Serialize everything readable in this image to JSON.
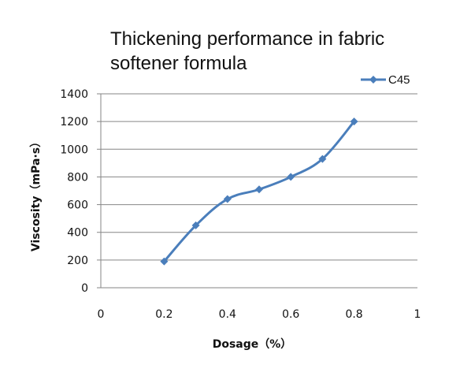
{
  "chart_data": {
    "type": "line",
    "title_lines": [
      "Thickening performance in fabric",
      "softener formula"
    ],
    "xlabel": "Dosage（%）",
    "ylabel": "Viscosity（mPa·s）",
    "xlim": [
      0,
      1
    ],
    "ylim": [
      0,
      1400
    ],
    "x_ticks": [
      "0",
      "0.2",
      "0.4",
      "0.6",
      "0.8",
      "1"
    ],
    "y_ticks": [
      "0",
      "200",
      "400",
      "600",
      "800",
      "1000",
      "1200",
      "1400"
    ],
    "x_tick_values": [
      0,
      0.2,
      0.4,
      0.6,
      0.8,
      1
    ],
    "y_tick_values": [
      0,
      200,
      400,
      600,
      800,
      1000,
      1200,
      1400
    ],
    "grid": "horizontal",
    "legend_position": "top-right",
    "series": [
      {
        "name": "C45",
        "color": "#4a7ebb",
        "marker": "diamond",
        "x": [
          0.2,
          0.3,
          0.4,
          0.5,
          0.6,
          0.7,
          0.8
        ],
        "y": [
          190,
          450,
          640,
          710,
          800,
          930,
          1200
        ]
      }
    ]
  }
}
